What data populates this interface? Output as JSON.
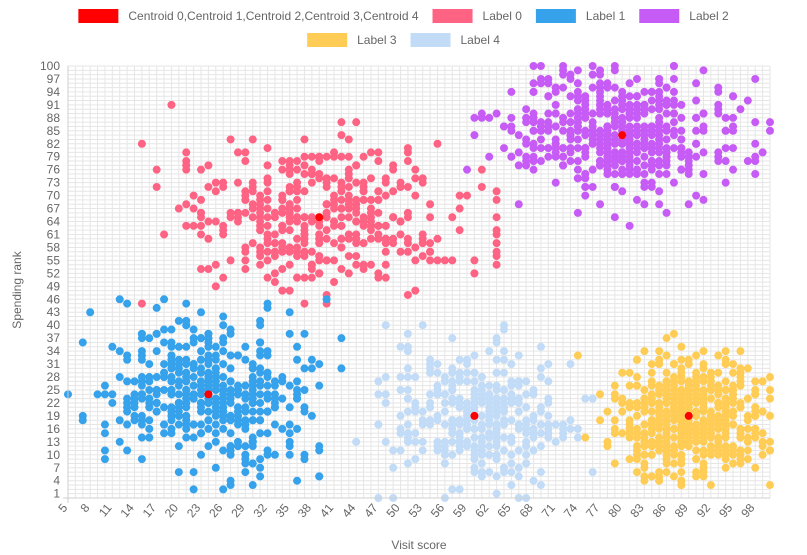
{
  "chart_data": {
    "type": "scatter",
    "xlabel": "Visit score",
    "ylabel": "Spending rank",
    "xlim": [
      5,
      100
    ],
    "ylim": [
      0,
      100
    ],
    "x_ticks": [
      5,
      8,
      11,
      14,
      17,
      20,
      23,
      26,
      29,
      32,
      35,
      38,
      41,
      44,
      47,
      50,
      53,
      56,
      59,
      62,
      65,
      68,
      71,
      74,
      77,
      80,
      83,
      86,
      89,
      92,
      95,
      98
    ],
    "y_ticks": [
      1,
      4,
      7,
      10,
      13,
      16,
      19,
      22,
      25,
      28,
      31,
      34,
      37,
      40,
      43,
      46,
      49,
      52,
      55,
      58,
      61,
      64,
      67,
      70,
      73,
      76,
      79,
      82,
      85,
      88,
      91,
      94,
      97,
      100
    ],
    "grid": true,
    "legend_position": "top",
    "legend": [
      {
        "name": "Centroid 0,Centroid 1,Centroid 2,Centroid 3,Centroid 4",
        "color": "#ff0000"
      },
      {
        "name": "Label 0",
        "color": "#ff6384"
      },
      {
        "name": "Label 1",
        "color": "#36a2eb"
      },
      {
        "name": "Label 2",
        "color": "#c65cf5"
      },
      {
        "name": "Label 3",
        "color": "#ffcd56"
      },
      {
        "name": "Label 4",
        "color": "#c2dcf7"
      }
    ],
    "centroids": [
      {
        "x": 39,
        "y": 65
      },
      {
        "x": 24,
        "y": 24
      },
      {
        "x": 80,
        "y": 84
      },
      {
        "x": 89,
        "y": 19
      },
      {
        "x": 60,
        "y": 19
      }
    ],
    "series": [
      {
        "name": "Label 0",
        "color": "#ff6384",
        "x_range": [
          11,
          63
        ],
        "y_range": [
          45,
          91
        ],
        "approx_points": 420
      },
      {
        "name": "Label 1",
        "color": "#36a2eb",
        "x_range": [
          5,
          42
        ],
        "y_range": [
          2,
          46
        ],
        "approx_points": 480
      },
      {
        "name": "Label 2",
        "color": "#c65cf5",
        "x_range": [
          59,
          100
        ],
        "y_range": [
          62,
          100
        ],
        "approx_points": 520
      },
      {
        "name": "Label 3",
        "color": "#ffcd56",
        "x_range": [
          74,
          100
        ],
        "y_range": [
          3,
          38
        ],
        "approx_points": 560
      },
      {
        "name": "Label 4",
        "color": "#c2dcf7",
        "x_range": [
          43,
          76
        ],
        "y_range": [
          0,
          40
        ],
        "approx_points": 380
      }
    ]
  }
}
